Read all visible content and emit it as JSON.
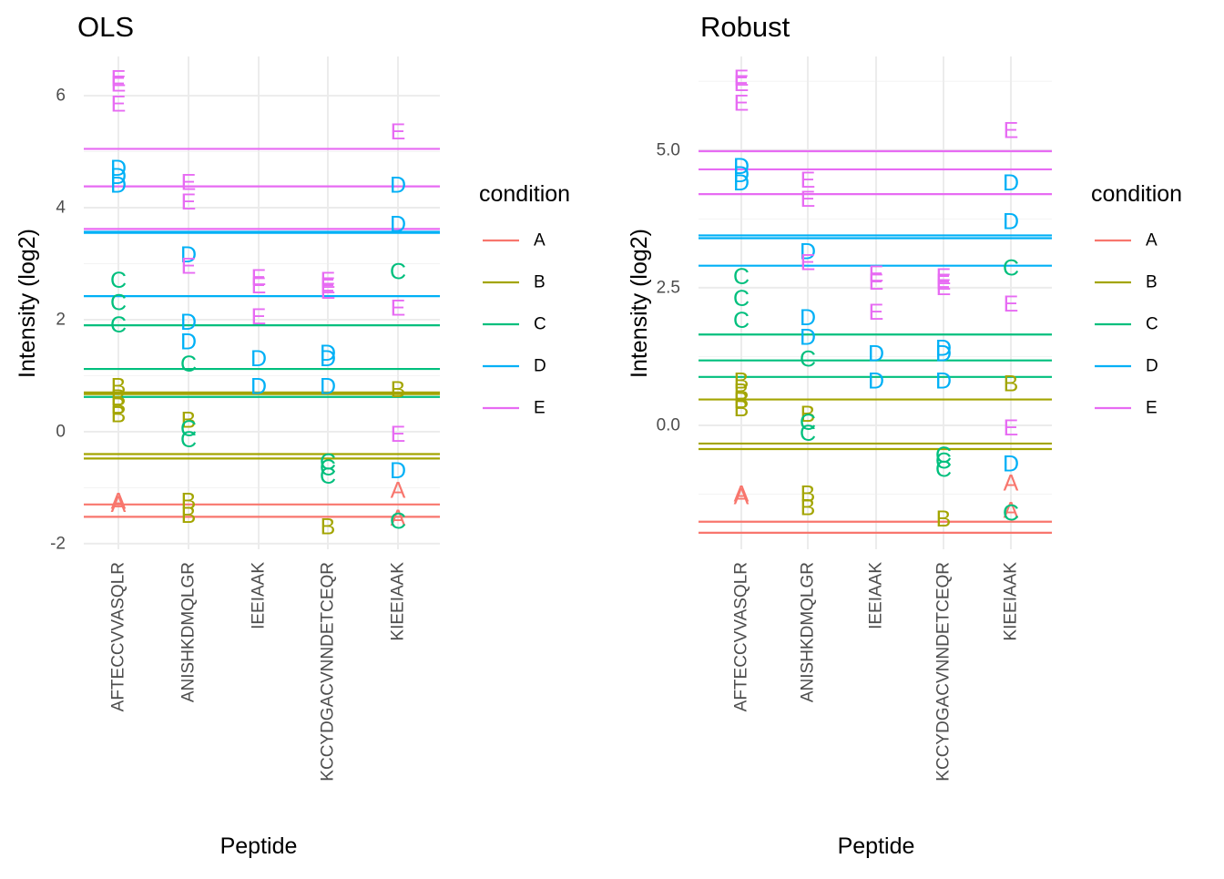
{
  "legend": {
    "title": "condition",
    "items": [
      {
        "label": "A",
        "color": "#F8766D"
      },
      {
        "label": "B",
        "color": "#A3A500"
      },
      {
        "label": "C",
        "color": "#00BF7D"
      },
      {
        "label": "D",
        "color": "#00B0F6"
      },
      {
        "label": "E",
        "color": "#E76BF3"
      }
    ]
  },
  "chart_data": [
    {
      "type": "scatter",
      "title": "OLS",
      "xlabel": "Peptide",
      "ylabel": "Intensity (log2)",
      "categories": [
        "AFTECCVVASQLR",
        "ANISHKDMQLGR",
        "IEEIAAK",
        "KCCYDGACVNNDETCEQR",
        "KIEEIAAK"
      ],
      "ylim": [
        -2.1,
        6.7
      ],
      "yticks": [
        -2,
        0,
        2,
        4,
        6
      ],
      "ytick_labels": [
        "-2",
        "0",
        "2",
        "4",
        "6"
      ],
      "grid": true,
      "points": [
        {
          "x": "AFTECCVVASQLR",
          "y": 6.3,
          "label": "E"
        },
        {
          "x": "AFTECCVVASQLR",
          "y": 6.2,
          "label": "E"
        },
        {
          "x": "AFTECCVVASQLR",
          "y": 5.85,
          "label": "E"
        },
        {
          "x": "AFTECCVVASQLR",
          "y": 4.7,
          "label": "D"
        },
        {
          "x": "AFTECCVVASQLR",
          "y": 4.55,
          "label": "D"
        },
        {
          "x": "AFTECCVVASQLR",
          "y": 4.4,
          "label": "D"
        },
        {
          "x": "AFTECCVVASQLR",
          "y": 2.7,
          "label": "C"
        },
        {
          "x": "AFTECCVVASQLR",
          "y": 2.3,
          "label": "C"
        },
        {
          "x": "AFTECCVVASQLR",
          "y": 1.9,
          "label": "C"
        },
        {
          "x": "AFTECCVVASQLR",
          "y": 0.8,
          "label": "B"
        },
        {
          "x": "AFTECCVVASQLR",
          "y": 0.6,
          "label": "B"
        },
        {
          "x": "AFTECCVVASQLR",
          "y": 0.45,
          "label": "B"
        },
        {
          "x": "AFTECCVVASQLR",
          "y": 0.3,
          "label": "B"
        },
        {
          "x": "AFTECCVVASQLR",
          "y": -1.25,
          "label": "A"
        },
        {
          "x": "AFTECCVVASQLR",
          "y": -1.3,
          "label": "A"
        },
        {
          "x": "ANISHKDMQLGR",
          "y": 4.45,
          "label": "E"
        },
        {
          "x": "ANISHKDMQLGR",
          "y": 4.1,
          "label": "E"
        },
        {
          "x": "ANISHKDMQLGR",
          "y": 3.15,
          "label": "D"
        },
        {
          "x": "ANISHKDMQLGR",
          "y": 2.95,
          "label": "E"
        },
        {
          "x": "ANISHKDMQLGR",
          "y": 1.95,
          "label": "D"
        },
        {
          "x": "ANISHKDMQLGR",
          "y": 1.6,
          "label": "D"
        },
        {
          "x": "ANISHKDMQLGR",
          "y": 1.2,
          "label": "C"
        },
        {
          "x": "ANISHKDMQLGR",
          "y": 0.2,
          "label": "B"
        },
        {
          "x": "ANISHKDMQLGR",
          "y": 0.05,
          "label": "C"
        },
        {
          "x": "ANISHKDMQLGR",
          "y": -0.15,
          "label": "C"
        },
        {
          "x": "ANISHKDMQLGR",
          "y": -1.25,
          "label": "B"
        },
        {
          "x": "ANISHKDMQLGR",
          "y": -1.5,
          "label": "B"
        },
        {
          "x": "IEEIAAK",
          "y": 2.75,
          "label": "E"
        },
        {
          "x": "IEEIAAK",
          "y": 2.6,
          "label": "E"
        },
        {
          "x": "IEEIAAK",
          "y": 2.05,
          "label": "E"
        },
        {
          "x": "IEEIAAK",
          "y": 1.3,
          "label": "D"
        },
        {
          "x": "IEEIAAK",
          "y": 0.8,
          "label": "D"
        },
        {
          "x": "KCCYDGACVNNDETCEQR",
          "y": 2.7,
          "label": "E"
        },
        {
          "x": "KCCYDGACVNNDETCEQR",
          "y": 2.6,
          "label": "E"
        },
        {
          "x": "KCCYDGACVNNDETCEQR",
          "y": 2.5,
          "label": "E"
        },
        {
          "x": "KCCYDGACVNNDETCEQR",
          "y": 1.4,
          "label": "D"
        },
        {
          "x": "KCCYDGACVNNDETCEQR",
          "y": 1.3,
          "label": "D"
        },
        {
          "x": "KCCYDGACVNNDETCEQR",
          "y": 0.8,
          "label": "D"
        },
        {
          "x": "KCCYDGACVNNDETCEQR",
          "y": -0.55,
          "label": "C"
        },
        {
          "x": "KCCYDGACVNNDETCEQR",
          "y": -0.65,
          "label": "C"
        },
        {
          "x": "KCCYDGACVNNDETCEQR",
          "y": -0.8,
          "label": "C"
        },
        {
          "x": "KCCYDGACVNNDETCEQR",
          "y": -1.7,
          "label": "B"
        },
        {
          "x": "KIEEIAAK",
          "y": 5.35,
          "label": "E"
        },
        {
          "x": "KIEEIAAK",
          "y": 4.4,
          "label": "D"
        },
        {
          "x": "KIEEIAAK",
          "y": 3.7,
          "label": "D"
        },
        {
          "x": "KIEEIAAK",
          "y": 2.85,
          "label": "C"
        },
        {
          "x": "KIEEIAAK",
          "y": 2.2,
          "label": "E"
        },
        {
          "x": "KIEEIAAK",
          "y": 0.75,
          "label": "B"
        },
        {
          "x": "KIEEIAAK",
          "y": -0.05,
          "label": "E"
        },
        {
          "x": "KIEEIAAK",
          "y": -0.7,
          "label": "D"
        },
        {
          "x": "KIEEIAAK",
          "y": -1.05,
          "label": "A"
        },
        {
          "x": "KIEEIAAK",
          "y": -1.55,
          "label": "A"
        },
        {
          "x": "KIEEIAAK",
          "y": -1.6,
          "label": "C"
        }
      ],
      "hlines": [
        {
          "y": 5.05,
          "label": "E"
        },
        {
          "y": 4.38,
          "label": "E"
        },
        {
          "y": 3.62,
          "label": "E"
        },
        {
          "y": 3.57,
          "label": "D"
        },
        {
          "y": 3.55,
          "label": "D"
        },
        {
          "y": 2.42,
          "label": "D"
        },
        {
          "y": 1.9,
          "label": "C"
        },
        {
          "y": 1.12,
          "label": "C"
        },
        {
          "y": 0.7,
          "label": "B"
        },
        {
          "y": 0.67,
          "label": "B"
        },
        {
          "y": 0.62,
          "label": "C"
        },
        {
          "y": -0.4,
          "label": "B"
        },
        {
          "y": -0.48,
          "label": "B"
        },
        {
          "y": -1.3,
          "label": "A"
        },
        {
          "y": -1.52,
          "label": "A"
        }
      ]
    },
    {
      "type": "scatter",
      "title": "Robust",
      "xlabel": "Peptide",
      "ylabel": "Intensity (log2)",
      "categories": [
        "AFTECCVVASQLR",
        "ANISHKDMQLGR",
        "IEEIAAK",
        "KCCYDGACVNNDETCEQR",
        "KIEEIAAK"
      ],
      "ylim": [
        -2.25,
        6.7
      ],
      "yticks": [
        0.0,
        2.5,
        5.0
      ],
      "ytick_labels": [
        "0.0",
        "2.5",
        "5.0"
      ],
      "grid": true,
      "points": [
        {
          "x": "AFTECCVVASQLR",
          "y": 6.3,
          "label": "E"
        },
        {
          "x": "AFTECCVVASQLR",
          "y": 6.2,
          "label": "E"
        },
        {
          "x": "AFTECCVVASQLR",
          "y": 5.85,
          "label": "E"
        },
        {
          "x": "AFTECCVVASQLR",
          "y": 4.7,
          "label": "D"
        },
        {
          "x": "AFTECCVVASQLR",
          "y": 4.55,
          "label": "D"
        },
        {
          "x": "AFTECCVVASQLR",
          "y": 4.4,
          "label": "D"
        },
        {
          "x": "AFTECCVVASQLR",
          "y": 2.7,
          "label": "C"
        },
        {
          "x": "AFTECCVVASQLR",
          "y": 2.3,
          "label": "C"
        },
        {
          "x": "AFTECCVVASQLR",
          "y": 1.9,
          "label": "C"
        },
        {
          "x": "AFTECCVVASQLR",
          "y": 0.8,
          "label": "B"
        },
        {
          "x": "AFTECCVVASQLR",
          "y": 0.6,
          "label": "B"
        },
        {
          "x": "AFTECCVVASQLR",
          "y": 0.45,
          "label": "B"
        },
        {
          "x": "AFTECCVVASQLR",
          "y": 0.3,
          "label": "B"
        },
        {
          "x": "AFTECCVVASQLR",
          "y": -1.25,
          "label": "A"
        },
        {
          "x": "AFTECCVVASQLR",
          "y": -1.3,
          "label": "A"
        },
        {
          "x": "ANISHKDMQLGR",
          "y": 4.45,
          "label": "E"
        },
        {
          "x": "ANISHKDMQLGR",
          "y": 4.1,
          "label": "E"
        },
        {
          "x": "ANISHKDMQLGR",
          "y": 3.15,
          "label": "D"
        },
        {
          "x": "ANISHKDMQLGR",
          "y": 2.95,
          "label": "E"
        },
        {
          "x": "ANISHKDMQLGR",
          "y": 1.95,
          "label": "D"
        },
        {
          "x": "ANISHKDMQLGR",
          "y": 1.6,
          "label": "D"
        },
        {
          "x": "ANISHKDMQLGR",
          "y": 1.2,
          "label": "C"
        },
        {
          "x": "ANISHKDMQLGR",
          "y": 0.2,
          "label": "B"
        },
        {
          "x": "ANISHKDMQLGR",
          "y": 0.05,
          "label": "C"
        },
        {
          "x": "ANISHKDMQLGR",
          "y": -0.15,
          "label": "C"
        },
        {
          "x": "ANISHKDMQLGR",
          "y": -1.25,
          "label": "B"
        },
        {
          "x": "ANISHKDMQLGR",
          "y": -1.5,
          "label": "B"
        },
        {
          "x": "IEEIAAK",
          "y": 2.75,
          "label": "E"
        },
        {
          "x": "IEEIAAK",
          "y": 2.6,
          "label": "E"
        },
        {
          "x": "IEEIAAK",
          "y": 2.05,
          "label": "E"
        },
        {
          "x": "IEEIAAK",
          "y": 1.3,
          "label": "D"
        },
        {
          "x": "IEEIAAK",
          "y": 0.8,
          "label": "D"
        },
        {
          "x": "KCCYDGACVNNDETCEQR",
          "y": 2.7,
          "label": "E"
        },
        {
          "x": "KCCYDGACVNNDETCEQR",
          "y": 2.6,
          "label": "E"
        },
        {
          "x": "KCCYDGACVNNDETCEQR",
          "y": 2.5,
          "label": "E"
        },
        {
          "x": "KCCYDGACVNNDETCEQR",
          "y": 1.4,
          "label": "D"
        },
        {
          "x": "KCCYDGACVNNDETCEQR",
          "y": 1.3,
          "label": "D"
        },
        {
          "x": "KCCYDGACVNNDETCEQR",
          "y": 0.8,
          "label": "D"
        },
        {
          "x": "KCCYDGACVNNDETCEQR",
          "y": -0.55,
          "label": "C"
        },
        {
          "x": "KCCYDGACVNNDETCEQR",
          "y": -0.65,
          "label": "C"
        },
        {
          "x": "KCCYDGACVNNDETCEQR",
          "y": -0.8,
          "label": "C"
        },
        {
          "x": "KCCYDGACVNNDETCEQR",
          "y": -1.7,
          "label": "B"
        },
        {
          "x": "KIEEIAAK",
          "y": 5.35,
          "label": "E"
        },
        {
          "x": "KIEEIAAK",
          "y": 4.4,
          "label": "D"
        },
        {
          "x": "KIEEIAAK",
          "y": 3.7,
          "label": "D"
        },
        {
          "x": "KIEEIAAK",
          "y": 2.85,
          "label": "C"
        },
        {
          "x": "KIEEIAAK",
          "y": 2.2,
          "label": "E"
        },
        {
          "x": "KIEEIAAK",
          "y": 0.75,
          "label": "B"
        },
        {
          "x": "KIEEIAAK",
          "y": -0.05,
          "label": "E"
        },
        {
          "x": "KIEEIAAK",
          "y": -0.7,
          "label": "D"
        },
        {
          "x": "KIEEIAAK",
          "y": -1.05,
          "label": "A"
        },
        {
          "x": "KIEEIAAK",
          "y": -1.55,
          "label": "A"
        },
        {
          "x": "KIEEIAAK",
          "y": -1.6,
          "label": "C"
        }
      ],
      "hlines": [
        {
          "y": 4.98,
          "label": "E"
        },
        {
          "y": 4.65,
          "label": "E"
        },
        {
          "y": 4.2,
          "label": "E"
        },
        {
          "y": 3.45,
          "label": "D"
        },
        {
          "y": 3.4,
          "label": "D"
        },
        {
          "y": 2.9,
          "label": "D"
        },
        {
          "y": 1.65,
          "label": "C"
        },
        {
          "y": 1.18,
          "label": "C"
        },
        {
          "y": 0.88,
          "label": "C"
        },
        {
          "y": 0.47,
          "label": "B"
        },
        {
          "y": -0.33,
          "label": "B"
        },
        {
          "y": -0.43,
          "label": "B"
        },
        {
          "y": -1.75,
          "label": "A"
        },
        {
          "y": -1.95,
          "label": "A"
        }
      ]
    }
  ]
}
